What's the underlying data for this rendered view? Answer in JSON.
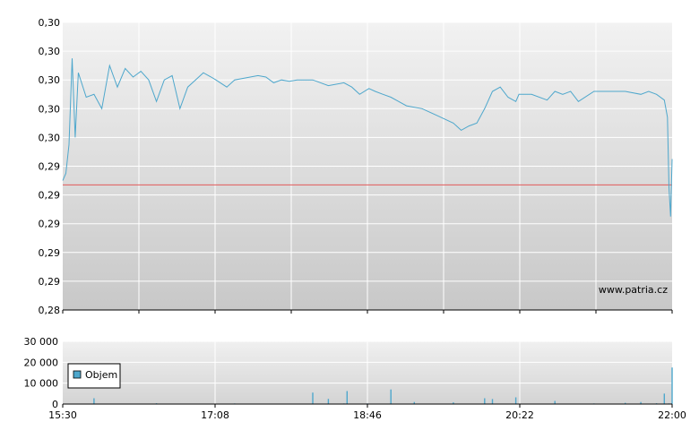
{
  "watermark": "www.patria.cz",
  "colors": {
    "price_line": "#4ea7cc",
    "reference_line": "#e05a5a",
    "volume_bar": "#4ea7cc",
    "grid": "#ffffff",
    "axis": "#000000"
  },
  "chart_data": [
    {
      "type": "line",
      "title": "",
      "xlabel": "",
      "ylabel": "",
      "y_tick_labels": [
        "0,28",
        "0,29",
        "0,29",
        "0,29",
        "0,29",
        "0,29",
        "0,30",
        "0,30",
        "0,30",
        "0,30",
        "0,30"
      ],
      "ylim": [
        0.28,
        0.3
      ],
      "grid": true,
      "reference_line": 0.2887,
      "x_time": [
        "15:30",
        "15:32",
        "15:34",
        "15:36",
        "15:38",
        "15:40",
        "15:45",
        "15:50",
        "15:55",
        "16:00",
        "16:05",
        "16:10",
        "16:15",
        "16:20",
        "16:25",
        "16:30",
        "16:35",
        "16:40",
        "16:45",
        "16:50",
        "16:55",
        "17:00",
        "17:05",
        "17:08",
        "17:15",
        "17:20",
        "17:30",
        "17:35",
        "17:40",
        "17:45",
        "17:50",
        "17:55",
        "18:00",
        "18:10",
        "18:20",
        "18:30",
        "18:35",
        "18:40",
        "18:46",
        "18:50",
        "18:55",
        "19:00",
        "19:05",
        "19:10",
        "19:20",
        "19:30",
        "19:40",
        "19:45",
        "19:50",
        "19:55",
        "20:00",
        "20:05",
        "20:10",
        "20:15",
        "20:20",
        "20:22",
        "20:30",
        "20:40",
        "20:45",
        "20:50",
        "20:55",
        "21:00",
        "21:10",
        "21:20",
        "21:30",
        "21:40",
        "21:45",
        "21:50",
        "21:55",
        "21:57",
        "21:58",
        "21:59",
        "22:00"
      ],
      "y_price": [
        0.289,
        0.2895,
        0.2915,
        0.2975,
        0.292,
        0.2965,
        0.2948,
        0.295,
        0.294,
        0.297,
        0.2955,
        0.2968,
        0.2962,
        0.2966,
        0.296,
        0.2945,
        0.296,
        0.2963,
        0.294,
        0.2955,
        0.296,
        0.2965,
        0.2962,
        0.296,
        0.2955,
        0.296,
        0.2962,
        0.2963,
        0.2962,
        0.2958,
        0.296,
        0.2959,
        0.296,
        0.296,
        0.2956,
        0.2958,
        0.2955,
        0.295,
        0.2954,
        0.2952,
        0.295,
        0.2948,
        0.2945,
        0.2942,
        0.294,
        0.2935,
        0.293,
        0.2925,
        0.2928,
        0.293,
        0.294,
        0.2952,
        0.2955,
        0.2948,
        0.2945,
        0.295,
        0.295,
        0.2946,
        0.2952,
        0.295,
        0.2952,
        0.2945,
        0.2952,
        0.2952,
        0.2952,
        0.295,
        0.2952,
        0.295,
        0.2946,
        0.2934,
        0.2885,
        0.2865,
        0.2905
      ]
    },
    {
      "type": "bar",
      "title": "",
      "legend": [
        "Objem"
      ],
      "y_tick_labels": [
        "0",
        "10 000",
        "20 000",
        "30 000"
      ],
      "ylim": [
        0,
        30000
      ],
      "x_tick_labels": [
        "15:30",
        "17:08",
        "18:46",
        "20:22",
        "22:00"
      ],
      "x_time": [
        "15:40",
        "15:50",
        "16:30",
        "17:20",
        "17:55",
        "18:10",
        "18:20",
        "18:30",
        "18:32",
        "18:45",
        "19:00",
        "19:15",
        "19:40",
        "19:50",
        "20:00",
        "20:05",
        "20:20",
        "20:45",
        "21:10",
        "21:30",
        "21:40",
        "21:50",
        "21:55",
        "21:58",
        "22:00"
      ],
      "values": [
        200,
        2800,
        400,
        300,
        200,
        5500,
        2500,
        300,
        6200,
        300,
        7000,
        1000,
        800,
        200,
        2800,
        2400,
        3200,
        1500,
        300,
        600,
        1000,
        400,
        5000,
        300,
        17500
      ]
    }
  ]
}
